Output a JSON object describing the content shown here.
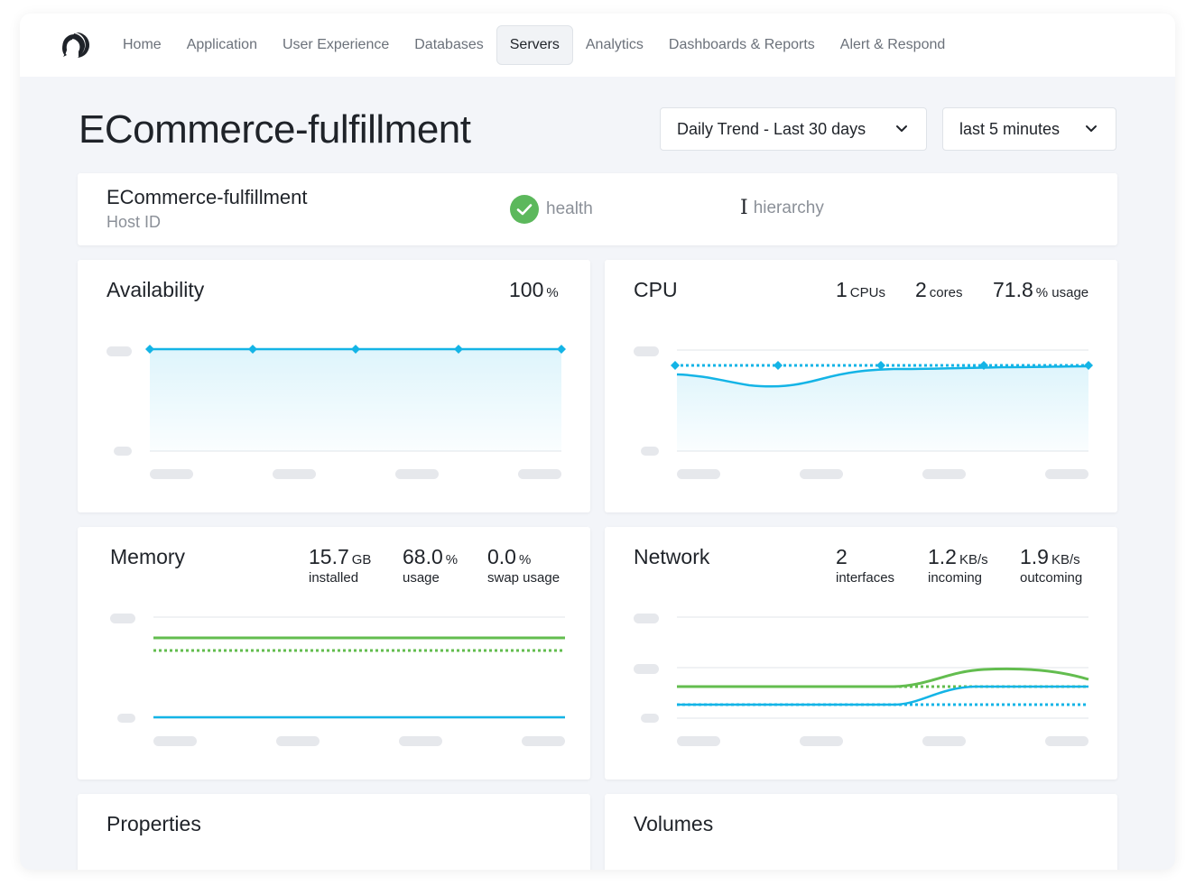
{
  "nav": {
    "items": [
      {
        "label": "Home",
        "active": false
      },
      {
        "label": "Application",
        "active": false
      },
      {
        "label": "User Experience",
        "active": false
      },
      {
        "label": "Databases",
        "active": false
      },
      {
        "label": "Servers",
        "active": true
      },
      {
        "label": "Analytics",
        "active": false
      },
      {
        "label": "Dashboards & Reports",
        "active": false
      },
      {
        "label": "Alert & Respond",
        "active": false
      }
    ]
  },
  "page": {
    "title": "ECommerce-fulfillment",
    "trend_selector": "Daily Trend - Last 30 days",
    "range_selector": "last 5 minutes"
  },
  "host": {
    "name": "ECommerce-fulfillment",
    "id_label": "Host ID",
    "health_label": "health",
    "hierarchy_label": "hierarchy"
  },
  "availability": {
    "title": "Availability",
    "value": "100",
    "unit": "%"
  },
  "cpu": {
    "title": "CPU",
    "cpus_value": "1",
    "cpus_unit": "CPUs",
    "cores_value": "2",
    "cores_unit": "cores",
    "usage_value": "71.8",
    "usage_unit": "% usage"
  },
  "memory": {
    "title": "Memory",
    "installed_value": "15.7",
    "installed_unit": "GB",
    "installed_caption": "installed",
    "usage_value": "68.0",
    "usage_unit": "%",
    "usage_caption": "usage",
    "swap_value": "0.0",
    "swap_unit": "%",
    "swap_caption": "swap usage"
  },
  "network": {
    "title": "Network",
    "interfaces_value": "2",
    "interfaces_caption": "interfaces",
    "incoming_value": "1.2",
    "incoming_unit": "KB/s",
    "incoming_caption": "incoming",
    "outgoing_value": "1.9",
    "outgoing_unit": "KB/s",
    "outgoing_caption": "outcoming"
  },
  "properties": {
    "title": "Properties"
  },
  "volumes": {
    "title": "Volumes"
  },
  "colors": {
    "blue": "#14b4e6",
    "green": "#63bd4f",
    "placeholder": "#e6e8ec",
    "gridline": "#eceef1",
    "health_ok": "#5cb85c"
  },
  "icons": {
    "logo": "dynatrace-logo",
    "health": "check-circle-icon",
    "hierarchy": "i-beam-icon",
    "dropdown": "chevron-down-icon"
  }
}
